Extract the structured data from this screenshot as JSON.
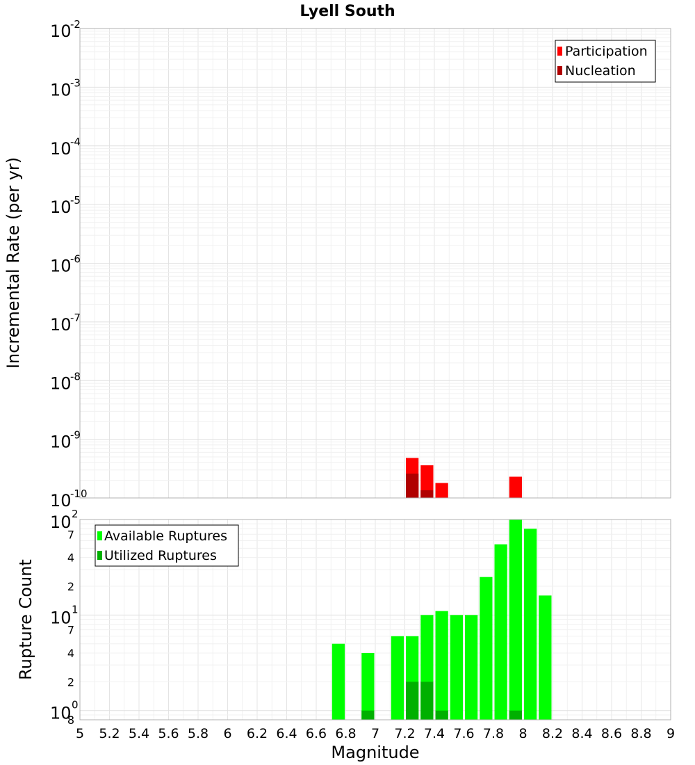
{
  "title": "Lyell South",
  "xlabel": "Magnitude",
  "x_ticks": [
    "5",
    "5.2",
    "5.4",
    "5.6",
    "5.8",
    "6",
    "6.2",
    "6.4",
    "6.6",
    "6.8",
    "7",
    "7.2",
    "7.4",
    "7.6",
    "7.8",
    "8",
    "8.2",
    "8.4",
    "8.6",
    "8.8",
    "9"
  ],
  "top_panel": {
    "ylabel": "Incremental Rate (per yr)",
    "y_scale": "log",
    "y_ticks": [
      {
        "base": "10",
        "exp": "-2"
      },
      {
        "base": "10",
        "exp": "-3"
      },
      {
        "base": "10",
        "exp": "-4"
      },
      {
        "base": "10",
        "exp": "-5"
      },
      {
        "base": "10",
        "exp": "-6"
      },
      {
        "base": "10",
        "exp": "-7"
      },
      {
        "base": "10",
        "exp": "-8"
      },
      {
        "base": "10",
        "exp": "-9"
      },
      {
        "base": "10",
        "exp": "-10"
      }
    ],
    "legend": [
      "Participation",
      "Nucleation"
    ]
  },
  "bottom_panel": {
    "ylabel": "Rupture Count",
    "y_scale": "log",
    "y_ticks": [
      {
        "base": "10",
        "exp": "2"
      },
      {
        "base": "10",
        "exp": "1"
      },
      {
        "base": "10",
        "exp": "0"
      }
    ],
    "minor_ticks": [
      "7",
      "4",
      "2",
      "7",
      "4",
      "2",
      "8"
    ],
    "legend": [
      "Available Ruptures",
      "Utilized Ruptures"
    ]
  },
  "colors": {
    "participation": "#ff0000",
    "nucleation": "#b00000",
    "available": "#00ff00",
    "utilized": "#00b000"
  },
  "chart_data": [
    {
      "type": "bar",
      "title": "Lyell South",
      "xlabel": "Magnitude",
      "ylabel": "Incremental Rate (per yr)",
      "y_scale": "log",
      "xlim": [
        5,
        9
      ],
      "ylim": [
        1e-10,
        0.01
      ],
      "legend_position": "top-right",
      "grid": true,
      "series": [
        {
          "name": "Participation",
          "x": [
            7.25,
            7.35,
            7.45,
            7.95
          ],
          "values": [
            4.8e-10,
            3.6e-10,
            1.8e-10,
            2.3e-10
          ]
        },
        {
          "name": "Nucleation",
          "x": [
            7.25,
            7.35
          ],
          "values": [
            2.6e-10,
            1.35e-10
          ]
        }
      ]
    },
    {
      "type": "bar",
      "xlabel": "Magnitude",
      "ylabel": "Rupture Count",
      "y_scale": "log",
      "xlim": [
        5,
        9
      ],
      "ylim": [
        0.8,
        100
      ],
      "legend_position": "top-left",
      "grid": true,
      "series": [
        {
          "name": "Available Ruptures",
          "x": [
            6.75,
            6.95,
            7.15,
            7.25,
            7.35,
            7.45,
            7.55,
            7.65,
            7.75,
            7.85,
            7.95,
            8.05,
            8.15
          ],
          "values": [
            5,
            4,
            6,
            6,
            10,
            11,
            10,
            10,
            25,
            55,
            100,
            80,
            16
          ]
        },
        {
          "name": "Utilized Ruptures",
          "x": [
            6.95,
            7.25,
            7.35,
            7.45,
            7.95
          ],
          "values": [
            1,
            2,
            2,
            1,
            1
          ]
        }
      ]
    }
  ]
}
